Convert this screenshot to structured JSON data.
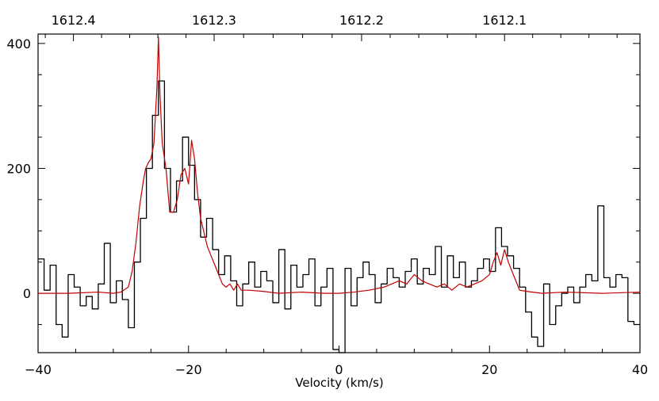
{
  "chart_data": {
    "type": "line",
    "xlabel": "Velocity (km/s)",
    "x_ticks": [
      -40,
      -20,
      0,
      20,
      40
    ],
    "x_tick_labels": [
      "−40",
      "−20",
      "0",
      "20",
      "40"
    ],
    "y_ticks": [
      0,
      200,
      400
    ],
    "y_tick_labels": [
      "0",
      "200",
      "400"
    ],
    "top_axis_tick_labels": [
      "1612.4",
      "1612.3",
      "1612.2",
      "1612.1"
    ],
    "top_axis_tick_positions_velocity": [
      -35.3,
      -16.6,
      3.0,
      22.0
    ],
    "xlim": [
      -40,
      40
    ],
    "ylim": [
      -95,
      415
    ],
    "grid": false,
    "legend": "none",
    "colors": {
      "black_series": "#000000",
      "red_series": "#c00000",
      "axes": "#000000"
    },
    "series": [
      {
        "style": "step",
        "color": "#000000",
        "x": [
          -40.0,
          -39.2,
          -38.4,
          -37.6,
          -36.8,
          -36.0,
          -35.2,
          -34.4,
          -33.6,
          -32.8,
          -32.0,
          -31.2,
          -30.4,
          -29.6,
          -28.8,
          -28.0,
          -27.2,
          -26.4,
          -25.6,
          -24.8,
          -24.0,
          -23.2,
          -22.4,
          -21.6,
          -20.8,
          -20.0,
          -19.2,
          -18.4,
          -17.6,
          -16.8,
          -16.0,
          -15.2,
          -14.4,
          -13.6,
          -12.8,
          -12.0,
          -11.2,
          -10.4,
          -9.6,
          -8.8,
          -8.0,
          -7.2,
          -6.4,
          -5.6,
          -4.8,
          -4.0,
          -3.2,
          -2.4,
          -1.6,
          -0.8,
          0.0,
          0.8,
          1.6,
          2.4,
          3.2,
          4.0,
          4.8,
          5.6,
          6.4,
          7.2,
          8.0,
          8.8,
          9.6,
          10.4,
          11.2,
          12.0,
          12.8,
          13.6,
          14.4,
          15.2,
          16.0,
          16.8,
          17.6,
          18.4,
          19.2,
          20.0,
          20.8,
          21.6,
          22.4,
          23.2,
          24.0,
          24.8,
          25.6,
          26.4,
          27.2,
          28.0,
          28.8,
          29.6,
          30.4,
          31.2,
          32.0,
          32.8,
          33.6,
          34.4,
          35.2,
          36.0,
          36.8,
          37.6,
          38.4,
          39.2
        ],
        "y": [
          55,
          5,
          45,
          -50,
          -70,
          30,
          10,
          -20,
          -5,
          -25,
          15,
          80,
          -15,
          20,
          -10,
          -55,
          50,
          120,
          200,
          285,
          340,
          200,
          130,
          180,
          250,
          205,
          150,
          90,
          120,
          70,
          30,
          60,
          20,
          -20,
          15,
          50,
          10,
          35,
          20,
          -15,
          70,
          -25,
          45,
          10,
          30,
          55,
          -20,
          10,
          40,
          -90,
          -95,
          40,
          -20,
          25,
          50,
          30,
          -15,
          15,
          40,
          25,
          10,
          35,
          55,
          15,
          40,
          30,
          75,
          10,
          60,
          25,
          50,
          10,
          20,
          40,
          55,
          35,
          105,
          75,
          60,
          40,
          10,
          -30,
          -70,
          -85,
          15,
          -50,
          -20,
          0,
          10,
          -15,
          10,
          30,
          20,
          140,
          25,
          10,
          30,
          25,
          -45,
          -50
        ]
      },
      {
        "style": "line",
        "color": "#c00000",
        "x": [
          -40,
          -36,
          -32,
          -30,
          -29,
          -28,
          -27.5,
          -27,
          -26.5,
          -26,
          -25.7,
          -25.3,
          -25,
          -24.6,
          -24.2,
          -24,
          -23.8,
          -23.5,
          -23,
          -22.5,
          -22,
          -21.5,
          -21,
          -20.5,
          -20,
          -19.6,
          -19.2,
          -18.8,
          -18.4,
          -18,
          -17.5,
          -17,
          -16.5,
          -16,
          -15.5,
          -15,
          -14.5,
          -14,
          -13.5,
          -13,
          -12,
          -10,
          -8,
          -5,
          -2,
          0,
          2,
          4,
          6,
          7,
          8,
          9,
          10,
          11,
          12,
          13,
          14,
          15,
          16,
          17,
          18,
          19,
          20,
          20.5,
          21,
          21.5,
          22,
          22.5,
          23,
          23.5,
          24,
          25,
          27,
          30,
          35,
          40
        ],
        "y": [
          0,
          0,
          2,
          0,
          2,
          10,
          35,
          80,
          140,
          180,
          200,
          210,
          215,
          240,
          330,
          410,
          320,
          240,
          200,
          130,
          130,
          150,
          190,
          200,
          175,
          245,
          215,
          160,
          120,
          100,
          75,
          60,
          45,
          30,
          15,
          10,
          15,
          5,
          15,
          5,
          5,
          3,
          0,
          2,
          0,
          0,
          2,
          5,
          10,
          15,
          20,
          15,
          30,
          20,
          15,
          10,
          15,
          5,
          15,
          10,
          15,
          20,
          30,
          50,
          65,
          45,
          70,
          50,
          35,
          20,
          5,
          3,
          0,
          2,
          0,
          2
        ]
      }
    ]
  }
}
